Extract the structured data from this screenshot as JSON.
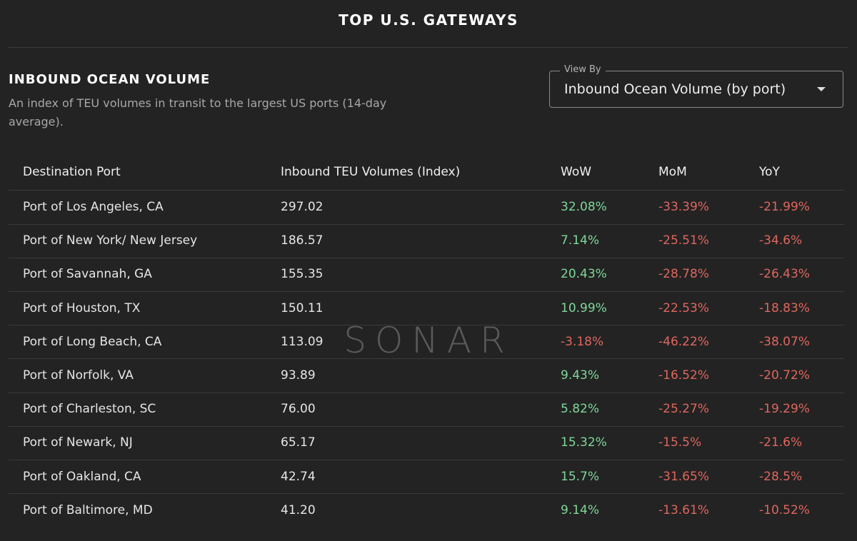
{
  "header": {
    "title": "TOP U.S. GATEWAYS"
  },
  "section": {
    "title": "INBOUND OCEAN VOLUME",
    "description": "An index of TEU volumes in transit to the largest US ports (14-day average)."
  },
  "view_by": {
    "label": "View By",
    "value": "Inbound Ocean Volume (by port)"
  },
  "watermark": "SONAR",
  "table": {
    "columns": [
      "Destination Port",
      "Inbound TEU Volumes (Index)",
      "WoW",
      "MoM",
      "YoY"
    ],
    "rows": [
      [
        "Port of Los Angeles, CA",
        "297.02",
        "32.08%",
        "-33.39%",
        "-21.99%"
      ],
      [
        "Port of New York/ New Jersey",
        "186.57",
        "7.14%",
        "-25.51%",
        "-34.6%"
      ],
      [
        "Port of Savannah, GA",
        "155.35",
        "20.43%",
        "-28.78%",
        "-26.43%"
      ],
      [
        "Port of Houston, TX",
        "150.11",
        "10.99%",
        "-22.53%",
        "-18.83%"
      ],
      [
        "Port of Long Beach, CA",
        "113.09",
        "-3.18%",
        "-46.22%",
        "-38.07%"
      ],
      [
        "Port of Norfolk, VA",
        "93.89",
        "9.43%",
        "-16.52%",
        "-20.72%"
      ],
      [
        "Port of Charleston, SC",
        "76.00",
        "5.82%",
        "-25.27%",
        "-19.29%"
      ],
      [
        "Port of Newark, NJ",
        "65.17",
        "15.32%",
        "-15.5%",
        "-21.6%"
      ],
      [
        "Port of Oakland, CA",
        "42.74",
        "15.7%",
        "-31.65%",
        "-28.5%"
      ],
      [
        "Port of Baltimore, MD",
        "41.20",
        "9.14%",
        "-13.61%",
        "-10.52%"
      ]
    ]
  }
}
